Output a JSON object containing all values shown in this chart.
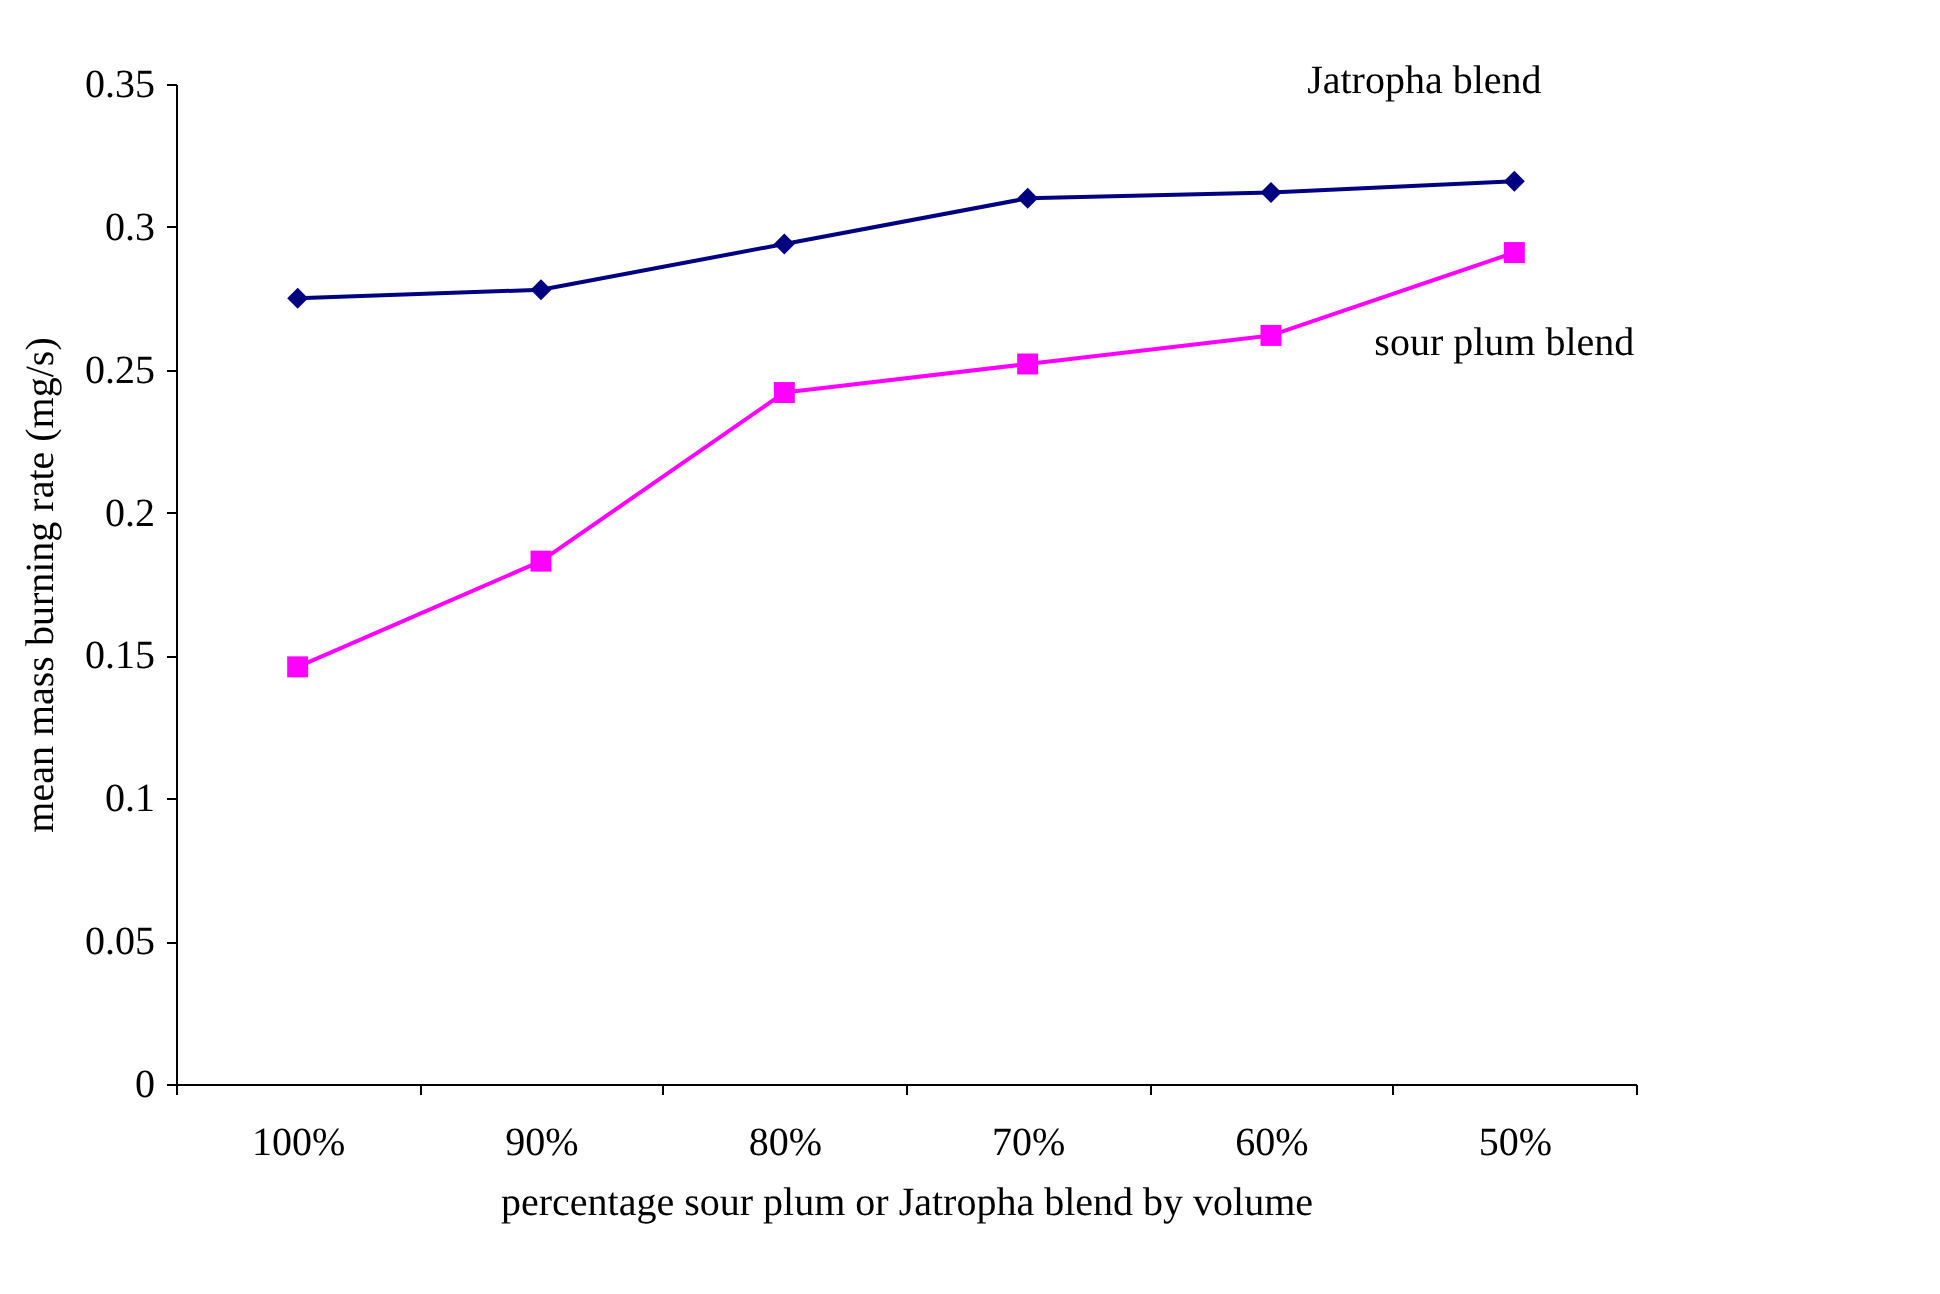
{
  "chart_data": {
    "type": "line",
    "xlabel": "percentage sour plum or Jatropha blend by volume",
    "ylabel": "mean mass burning rate (mg/s)",
    "categories": [
      "100%",
      "90%",
      "80%",
      "70%",
      "60%",
      "50%"
    ],
    "ylim": [
      0,
      0.35
    ],
    "yticks": [
      0,
      0.05,
      0.1,
      0.15,
      0.2,
      0.25,
      0.3,
      0.35
    ],
    "grid": false,
    "series": [
      {
        "name": "Jatropha blend",
        "color": "#000080",
        "marker": "diamond",
        "values": [
          0.275,
          0.278,
          0.294,
          0.31,
          0.312,
          0.316
        ]
      },
      {
        "name": "sour plum blend",
        "color": "#ff00ff",
        "marker": "square",
        "values": [
          0.146,
          0.183,
          0.242,
          0.252,
          0.262,
          0.291
        ]
      }
    ]
  }
}
